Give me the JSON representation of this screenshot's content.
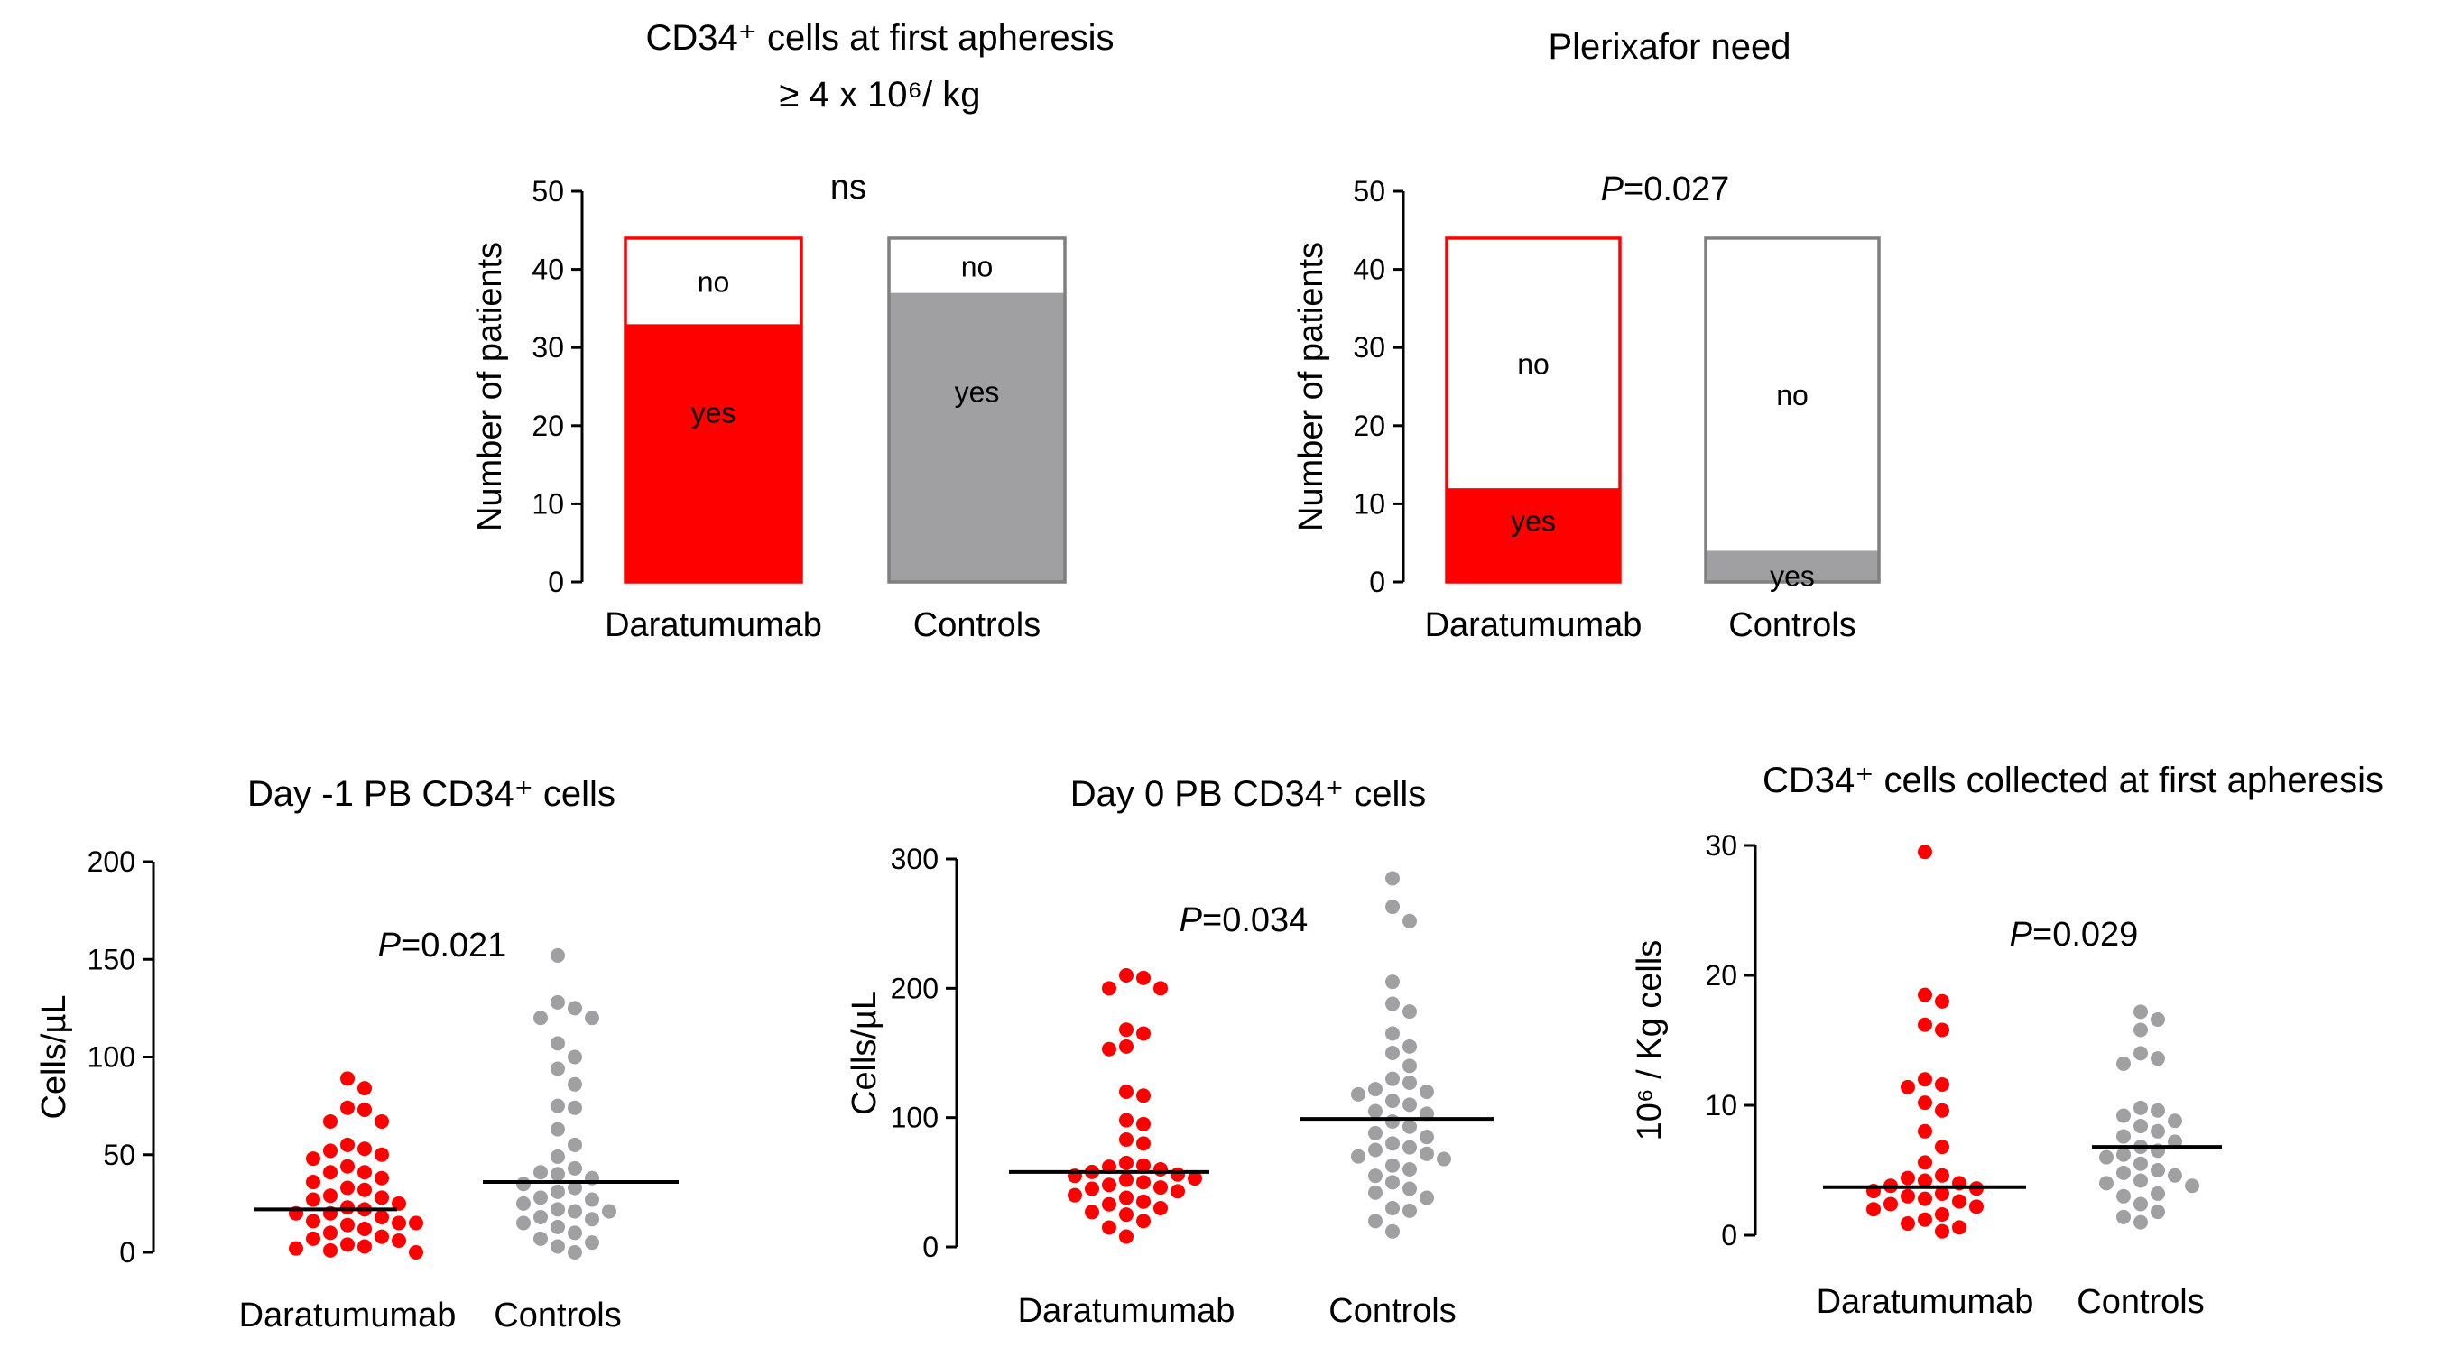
{
  "colors": {
    "daratumumab": "#ff0000",
    "controls": "#a0a0a3",
    "axis": "#000000",
    "mean": "#000000",
    "controls_outline": "#7f7f7f"
  },
  "chart_data": [
    {
      "id": "cd34-first-apheresis",
      "type": "bar",
      "stacked": true,
      "title": "CD34⁺  cells at first apheresis",
      "subtitle": "≥ 4 x 10⁶/ kg",
      "ylabel": "Number of patients",
      "ylim": [
        0,
        50
      ],
      "yticks": [
        "0",
        "10",
        "20",
        "30",
        "40",
        "50"
      ],
      "categories": [
        "Daratumumab",
        "Controls"
      ],
      "segments": [
        {
          "label": "yes",
          "values": [
            33,
            37
          ]
        },
        {
          "label": "no",
          "values": [
            11,
            7
          ]
        }
      ],
      "pvalue": {
        "prefix": "",
        "value": "ns"
      }
    },
    {
      "id": "plerixafor-need",
      "type": "bar",
      "stacked": true,
      "title": "Plerixafor need",
      "subtitle": "",
      "ylabel": "Number of patients",
      "ylim": [
        0,
        50
      ],
      "yticks": [
        "0",
        "10",
        "20",
        "30",
        "40",
        "50"
      ],
      "categories": [
        "Daratumumab",
        "Controls"
      ],
      "segments": [
        {
          "label": "yes",
          "values": [
            12,
            4
          ]
        },
        {
          "label": "no",
          "values": [
            32,
            40
          ]
        }
      ],
      "pvalue": {
        "prefix": "P",
        "value": "=0.027"
      }
    },
    {
      "id": "day-minus1-pb",
      "type": "scatter",
      "title": "Day -1 PB CD34⁺ cells",
      "ylabel": "Cells/µL",
      "ylim": [
        0,
        200
      ],
      "yticks": [
        "0",
        "50",
        "100",
        "150",
        "200"
      ],
      "categories": [
        "Daratumumab",
        "Controls"
      ],
      "pvalue": {
        "prefix": "P",
        "value": "=0.021"
      },
      "groups": [
        {
          "name": "Daratumumab",
          "mean": 22,
          "values": [
            89,
            84,
            74,
            73,
            67,
            67,
            55,
            53,
            52,
            50,
            48,
            44,
            41,
            41,
            38,
            36,
            33,
            32,
            29,
            28,
            27,
            25,
            23,
            22,
            20,
            20,
            18,
            16,
            15,
            15,
            14,
            12,
            10,
            8,
            7,
            6,
            4,
            3,
            2,
            1,
            0
          ]
        },
        {
          "name": "Controls",
          "mean": 36,
          "values": [
            152,
            128,
            125,
            120,
            120,
            107,
            100,
            94,
            86,
            75,
            74,
            63,
            55,
            49,
            43,
            41,
            40,
            38,
            35,
            33,
            31,
            28,
            27,
            25,
            22,
            21,
            21,
            18,
            17,
            15,
            13,
            10,
            7,
            5,
            3,
            0
          ]
        }
      ]
    },
    {
      "id": "day0-pb",
      "type": "scatter",
      "title": "Day 0 PB CD34⁺ cells",
      "ylabel": "Cells/µL",
      "ylim": [
        0,
        300
      ],
      "yticks": [
        "0",
        "100",
        "200",
        "300"
      ],
      "categories": [
        "Daratumumab",
        "Controls"
      ],
      "pvalue": {
        "prefix": "P",
        "value": "=0.034"
      },
      "groups": [
        {
          "name": "Daratumumab",
          "mean": 58,
          "values": [
            210,
            208,
            200,
            200,
            168,
            165,
            155,
            153,
            120,
            117,
            98,
            95,
            83,
            80,
            65,
            63,
            62,
            60,
            58,
            56,
            55,
            53,
            52,
            50,
            48,
            46,
            45,
            43,
            40,
            38,
            35,
            33,
            30,
            27,
            25,
            20,
            15,
            8
          ]
        },
        {
          "name": "Controls",
          "mean": 99,
          "values": [
            285,
            263,
            252,
            205,
            188,
            182,
            165,
            155,
            150,
            140,
            130,
            127,
            122,
            120,
            118,
            113,
            110,
            105,
            103,
            97,
            93,
            88,
            85,
            80,
            77,
            75,
            72,
            70,
            68,
            63,
            60,
            55,
            50,
            45,
            42,
            38,
            30,
            28,
            20,
            12
          ]
        }
      ]
    },
    {
      "id": "cd34-collected",
      "type": "scatter",
      "title": "CD34⁺ cells collected at first apheresis",
      "ylabel": "10⁶ / Kg cells",
      "ylim": [
        0,
        30
      ],
      "yticks": [
        "0",
        "10",
        "20",
        "30"
      ],
      "categories": [
        "Daratumumab",
        "Controls"
      ],
      "pvalue": {
        "prefix": "P",
        "value": "=0.029"
      },
      "groups": [
        {
          "name": "Daratumumab",
          "mean": 3.7,
          "values": [
            29.5,
            18.5,
            18.0,
            16.2,
            15.8,
            12.0,
            11.6,
            11.4,
            10.2,
            9.6,
            8.0,
            6.8,
            5.6,
            4.6,
            4.4,
            4.2,
            4.0,
            3.8,
            3.6,
            3.4,
            3.2,
            3.0,
            2.8,
            2.6,
            2.4,
            2.2,
            2.0,
            1.6,
            1.2,
            0.9,
            0.6,
            0.3
          ]
        },
        {
          "name": "Controls",
          "mean": 6.8,
          "values": [
            17.2,
            16.6,
            15.8,
            14.0,
            13.6,
            13.2,
            9.8,
            9.6,
            9.2,
            8.8,
            8.4,
            8.0,
            7.6,
            7.2,
            6.8,
            6.5,
            6.2,
            6.0,
            5.5,
            5.0,
            4.8,
            4.6,
            4.2,
            4.0,
            3.8,
            3.2,
            3.0,
            2.4,
            1.8,
            1.4,
            1.0
          ]
        }
      ]
    }
  ]
}
